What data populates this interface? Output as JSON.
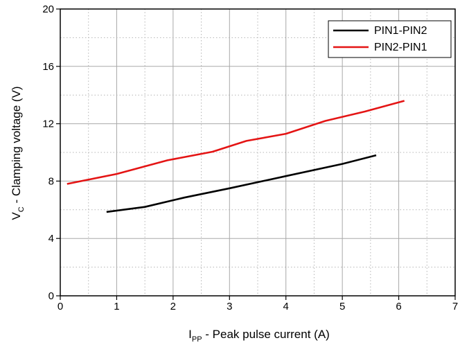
{
  "chart_data": {
    "type": "line",
    "title": "",
    "xlabel": {
      "main": "I",
      "sub": "PP",
      "rest": " - Peak pulse current (A)"
    },
    "ylabel": {
      "main": "V",
      "sub": "C",
      "rest": " - Clamping voltage (V)"
    },
    "xlim": [
      0,
      7
    ],
    "ylim": [
      0,
      20
    ],
    "xticks": [
      0,
      1,
      2,
      3,
      4,
      5,
      6,
      7
    ],
    "yticks": [
      0,
      4,
      8,
      12,
      16,
      20
    ],
    "xtick_labels": [
      "0",
      "1",
      "2",
      "3",
      "4",
      "5",
      "6",
      "7"
    ],
    "ytick_labels": [
      "0",
      "4",
      "8",
      "12",
      "16",
      "20"
    ],
    "grid": true,
    "legend_position": "top-right",
    "series": [
      {
        "name": "PIN1-PIN2",
        "color": "#000000",
        "x": [
          0.82,
          1.5,
          2.2,
          3.0,
          4.0,
          5.0,
          5.6
        ],
        "y": [
          5.85,
          6.2,
          6.85,
          7.5,
          8.35,
          9.2,
          9.8
        ]
      },
      {
        "name": "PIN2-PIN1",
        "color": "#e41414",
        "x": [
          0.12,
          1.0,
          1.9,
          2.7,
          3.3,
          4.0,
          4.7,
          5.4,
          6.1
        ],
        "y": [
          7.8,
          8.5,
          9.45,
          10.05,
          10.8,
          11.3,
          12.2,
          12.85,
          13.6
        ]
      }
    ]
  }
}
